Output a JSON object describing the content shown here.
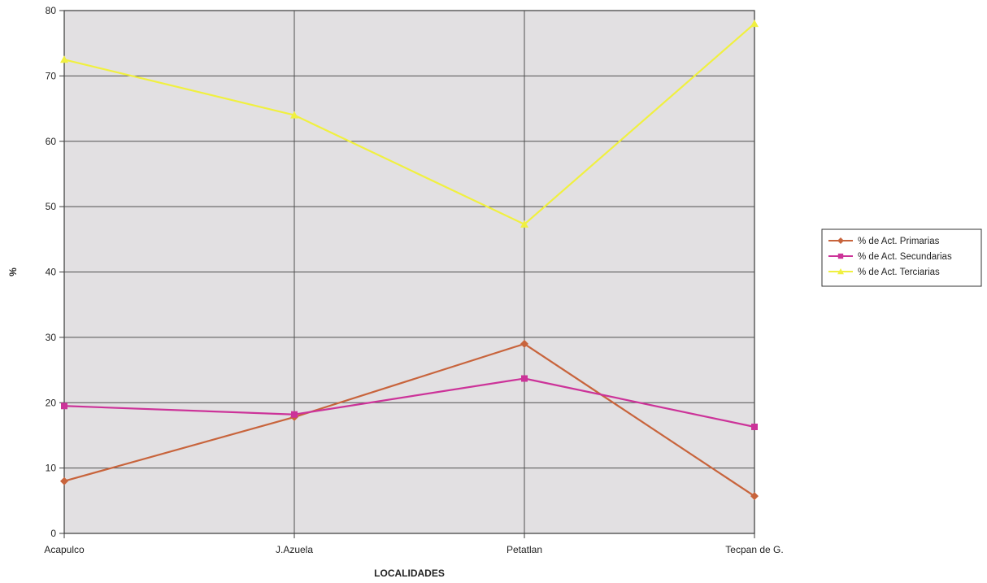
{
  "chart_data": {
    "type": "line",
    "title": "",
    "xlabel": "LOCALIDADES",
    "ylabel": "%",
    "categories": [
      "Acapulco",
      "J.Azuela",
      "Petatlan",
      "Tecpan de G."
    ],
    "ylim": [
      0,
      80
    ],
    "yticks": [
      0,
      10,
      20,
      30,
      40,
      50,
      60,
      70,
      80
    ],
    "grid": true,
    "legend_position": "right",
    "series": [
      {
        "name": "% de Act. Primarias",
        "values": [
          8,
          17.8,
          29,
          5.7
        ],
        "color": "#c8643c",
        "marker": "diamond"
      },
      {
        "name": "% de Act. Secundarias",
        "values": [
          19.5,
          18.2,
          23.7,
          16.3
        ],
        "color": "#cc3399",
        "marker": "square"
      },
      {
        "name": "% de Act. Terciarias",
        "values": [
          72.5,
          64,
          47.3,
          78
        ],
        "color": "#f0f040",
        "marker": "triangle"
      }
    ],
    "plot_background": "#e2e0e2",
    "grid_color": "#505050"
  }
}
